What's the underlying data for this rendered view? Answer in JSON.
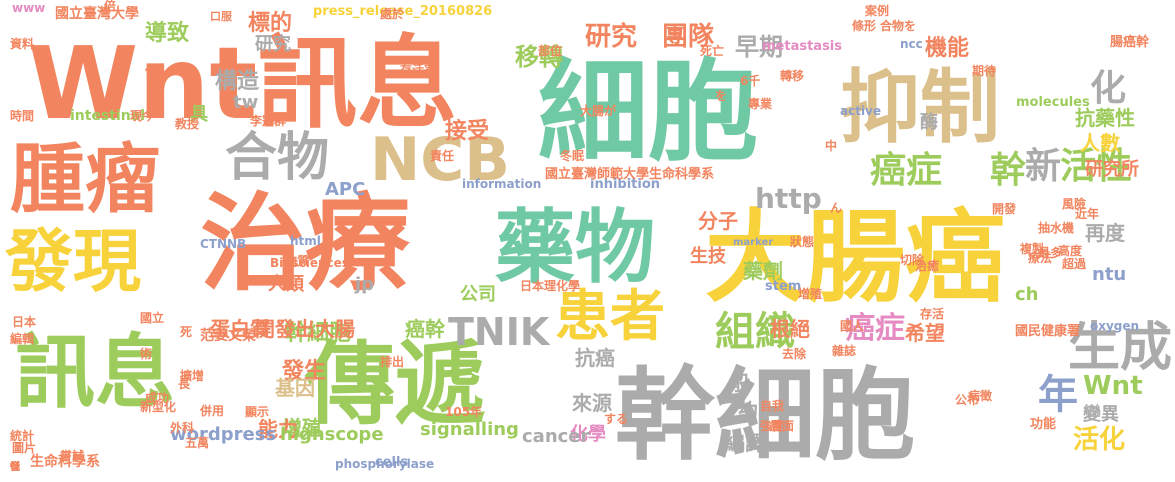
{
  "palette": {
    "orange": "#f2855f",
    "green": "#9dcc5c",
    "gray": "#ababab",
    "yellow": "#f7d23b",
    "tan": "#dcc08c",
    "teal": "#6fc9a4",
    "blue": "#8da0cb",
    "pink": "#e58bc2"
  },
  "words": [
    {
      "text": "Wnt訊息",
      "color": "orange"
    },
    {
      "text": "細胞",
      "color": "teal"
    },
    {
      "text": "抑制",
      "color": "tan"
    },
    {
      "text": "腫瘤",
      "color": "orange"
    },
    {
      "text": "治療",
      "color": "orange"
    },
    {
      "text": "大腸癌",
      "color": "yellow"
    },
    {
      "text": "藥物",
      "color": "teal"
    },
    {
      "text": "發現",
      "color": "yellow"
    },
    {
      "text": "訊息",
      "color": "green"
    },
    {
      "text": "傳遞",
      "color": "green"
    },
    {
      "text": "幹細胞",
      "color": "gray"
    },
    {
      "text": "NCB",
      "color": "tan"
    },
    {
      "text": "合物",
      "color": "gray"
    },
    {
      "text": "患者",
      "color": "yellow"
    },
    {
      "text": "生成",
      "color": "gray"
    },
    {
      "text": "化",
      "color": "gray"
    },
    {
      "text": "組織",
      "color": "green"
    },
    {
      "text": "癌症",
      "color": "green"
    },
    {
      "text": "幹",
      "color": "green"
    },
    {
      "text": "新",
      "color": "gray"
    },
    {
      "text": "活性",
      "color": "green"
    },
    {
      "text": "研究",
      "color": "orange"
    },
    {
      "text": "團隊",
      "color": "orange"
    },
    {
      "text": "移轉",
      "color": "green"
    },
    {
      "text": "早期",
      "color": "gray"
    },
    {
      "text": "機能",
      "color": "orange"
    },
    {
      "text": "TNIK",
      "color": "gray"
    },
    {
      "text": "http",
      "color": "gray"
    },
    {
      "text": "癌症",
      "color": "pink"
    },
    {
      "text": "年",
      "color": "blue"
    },
    {
      "text": "Wnt",
      "color": "green"
    },
    {
      "text": "活化",
      "color": "yellow"
    },
    {
      "text": "標的",
      "color": "orange"
    },
    {
      "text": "導致",
      "color": "green"
    },
    {
      "text": "構造",
      "color": "gray"
    },
    {
      "text": "接受",
      "color": "orange"
    },
    {
      "text": "抗藥性",
      "color": "green"
    },
    {
      "text": "人數",
      "color": "yellow"
    },
    {
      "text": "研究所",
      "color": "orange"
    },
    {
      "text": "分子",
      "color": "orange"
    },
    {
      "text": "再度",
      "color": "gray"
    },
    {
      "text": "藥劑",
      "color": "green"
    },
    {
      "text": "幹細胞",
      "color": "green"
    },
    {
      "text": "蛋白質",
      "color": "orange"
    },
    {
      "text": "開發出大腸",
      "color": "orange"
    },
    {
      "text": "癌幹",
      "color": "green"
    },
    {
      "text": "根絕",
      "color": "orange"
    },
    {
      "text": "希望",
      "color": "orange"
    },
    {
      "text": "發生",
      "color": "orange"
    },
    {
      "text": "基因",
      "color": "tan"
    },
    {
      "text": "增殖",
      "color": "green"
    },
    {
      "text": "能力",
      "color": "orange"
    },
    {
      "text": "抗癌",
      "color": "gray"
    },
    {
      "text": "來源",
      "color": "gray"
    },
    {
      "text": "化學",
      "color": "pink"
    },
    {
      "text": "般",
      "color": "gray"
    },
    {
      "text": "約",
      "color": "gray"
    },
    {
      "text": "編譯",
      "color": "gray"
    },
    {
      "text": "變異",
      "color": "gray"
    },
    {
      "text": "cancer",
      "color": "gray"
    },
    {
      "text": "signalling",
      "color": "green"
    },
    {
      "text": "wordpress",
      "color": "blue"
    },
    {
      "text": "highscope",
      "color": "green"
    },
    {
      "text": "生技",
      "color": "orange"
    },
    {
      "text": "公司",
      "color": "green"
    },
    {
      "text": "APC",
      "color": "blue"
    },
    {
      "text": "人類",
      "color": "orange"
    },
    {
      "text": "具",
      "color": "green"
    },
    {
      "text": "研究",
      "color": "gray"
    },
    {
      "text": "tw",
      "color": "gray"
    },
    {
      "text": "jp",
      "color": "gray"
    },
    {
      "text": "ch",
      "color": "green"
    },
    {
      "text": "ntu",
      "color": "blue"
    },
    {
      "text": "酶",
      "color": "gray"
    },
    {
      "text": "國立臺灣大學",
      "color": "orange"
    },
    {
      "text": "intestinal",
      "color": "green"
    },
    {
      "text": "生命科學系",
      "color": "orange"
    },
    {
      "text": "cells",
      "color": "blue"
    },
    {
      "text": "molecules",
      "color": "green"
    },
    {
      "text": "腸癌幹",
      "color": "orange"
    },
    {
      "text": "inhibition",
      "color": "blue"
    },
    {
      "text": "國立臺灣師範大學生命科學系",
      "color": "orange"
    },
    {
      "text": "stem",
      "color": "blue"
    },
    {
      "text": "功能",
      "color": "orange"
    },
    {
      "text": "國民健康署",
      "color": "orange"
    },
    {
      "text": "范姜文榮",
      "color": "orange"
    },
    {
      "text": "Biosciences",
      "color": "orange"
    },
    {
      "text": "phosphorylase",
      "color": "blue"
    },
    {
      "text": "press_release_20160826",
      "color": "yellow"
    },
    {
      "text": "metastasis",
      "color": "pink"
    },
    {
      "text": "information",
      "color": "blue"
    },
    {
      "text": "oxygen",
      "color": "blue"
    },
    {
      "text": "CTNNB",
      "color": "blue"
    },
    {
      "text": "105年",
      "color": "orange"
    },
    {
      "text": "active",
      "color": "blue"
    },
    {
      "text": "ncc",
      "color": "blue"
    },
    {
      "text": "近年",
      "color": "orange"
    },
    {
      "text": "抽水機",
      "color": "orange"
    },
    {
      "text": "存活率",
      "color": "orange"
    },
    {
      "text": "marker",
      "color": "blue"
    },
    {
      "text": "html",
      "color": "blue"
    },
    {
      "text": "www",
      "color": "pink"
    },
    {
      "text": "資料",
      "color": "orange"
    },
    {
      "text": "時間",
      "color": "orange"
    },
    {
      "text": "現今",
      "color": "orange"
    },
    {
      "text": "教授",
      "color": "orange"
    },
    {
      "text": "強度",
      "color": "orange"
    },
    {
      "text": "排出",
      "color": "orange"
    },
    {
      "text": "切除",
      "color": "orange"
    },
    {
      "text": "公布",
      "color": "orange"
    },
    {
      "text": "病徵",
      "color": "orange"
    },
    {
      "text": "自我",
      "color": "orange"
    },
    {
      "text": "成功",
      "color": "orange"
    },
    {
      "text": "統計",
      "color": "orange"
    },
    {
      "text": "圖片",
      "color": "orange"
    },
    {
      "text": "日本",
      "color": "orange"
    },
    {
      "text": "編輯",
      "color": "orange"
    },
    {
      "text": "國立",
      "color": "orange"
    },
    {
      "text": "新型化",
      "color": "orange"
    },
    {
      "text": "併用",
      "color": "orange"
    },
    {
      "text": "顯示",
      "color": "orange"
    },
    {
      "text": "層面",
      "color": "orange"
    },
    {
      "text": "去除",
      "color": "orange"
    },
    {
      "text": "案例",
      "color": "orange"
    },
    {
      "text": "死亡",
      "color": "orange"
    },
    {
      "text": "部位",
      "color": "orange"
    },
    {
      "text": "處於",
      "color": "orange"
    },
    {
      "text": "責任",
      "color": "orange"
    },
    {
      "text": "開發",
      "color": "orange"
    },
    {
      "text": "風險",
      "color": "orange"
    },
    {
      "text": "複製",
      "color": "orange"
    },
    {
      "text": "最多",
      "color": "orange"
    },
    {
      "text": "高度",
      "color": "orange"
    },
    {
      "text": "超過",
      "color": "orange"
    },
    {
      "text": "療法",
      "color": "orange"
    },
    {
      "text": "國人",
      "color": "orange"
    },
    {
      "text": "條形",
      "color": "orange"
    },
    {
      "text": "合物を",
      "color": "orange"
    },
    {
      "text": "期待",
      "color": "orange"
    },
    {
      "text": "口服",
      "color": "orange"
    },
    {
      "text": "增殖",
      "color": "orange"
    },
    {
      "text": "日本理化學",
      "color": "orange"
    },
    {
      "text": "外科",
      "color": "orange"
    },
    {
      "text": "五萬",
      "color": "orange"
    },
    {
      "text": "死",
      "color": "orange"
    },
    {
      "text": "長",
      "color": "orange"
    },
    {
      "text": "術",
      "color": "orange"
    },
    {
      "text": "倍",
      "color": "orange"
    },
    {
      "text": "低",
      "color": "orange"
    },
    {
      "text": "未",
      "color": "orange"
    },
    {
      "text": "嘗試",
      "color": "orange"
    },
    {
      "text": "中",
      "color": "orange"
    },
    {
      "text": "を",
      "color": "orange"
    },
    {
      "text": "する",
      "color": "orange"
    },
    {
      "text": "ん",
      "color": "orange"
    },
    {
      "text": "6千",
      "color": "orange"
    },
    {
      "text": "大腸が",
      "color": "orange"
    },
    {
      "text": "存活",
      "color": "orange"
    },
    {
      "text": "治癒",
      "color": "orange"
    },
    {
      "text": "物質",
      "color": "orange"
    },
    {
      "text": "冬眠",
      "color": "orange"
    },
    {
      "text": "雜誌",
      "color": "orange"
    },
    {
      "text": "狀態",
      "color": "orange"
    },
    {
      "text": "轉移",
      "color": "orange"
    },
    {
      "text": "專業",
      "color": "orange"
    },
    {
      "text": "擴增",
      "color": "orange"
    },
    {
      "text": "李冠群",
      "color": "orange"
    },
    {
      "text": "發",
      "color": "orange"
    },
    {
      "text": "低",
      "color": "orange"
    },
    {
      "text": "徑",
      "color": "orange"
    }
  ]
}
